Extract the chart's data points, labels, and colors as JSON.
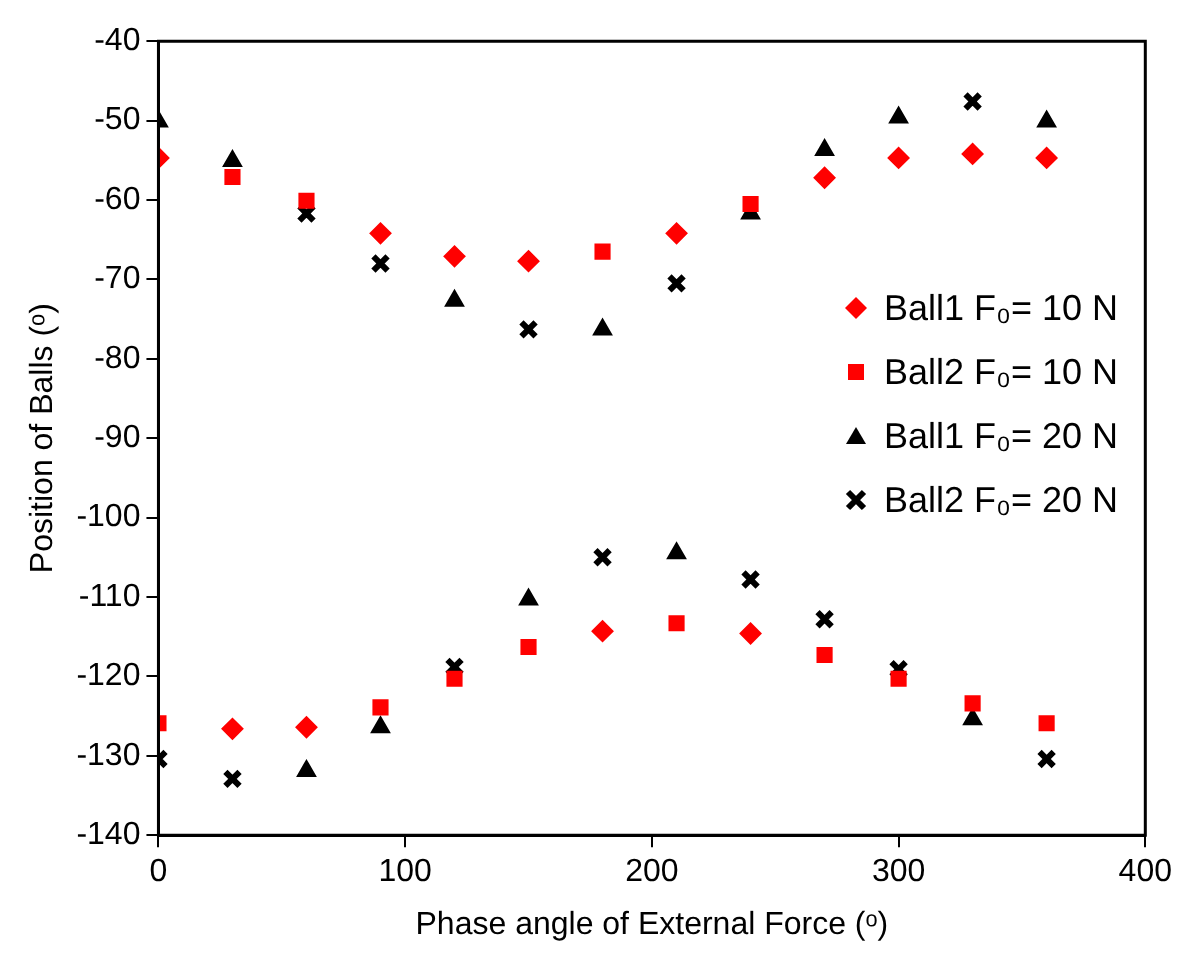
{
  "chart_data": {
    "type": "scatter",
    "xlabel": "Phase angle of External Force (ᵒ)",
    "ylabel": "Position of Balls (ᵒ)",
    "xlim": [
      0,
      400
    ],
    "xticks": [
      0,
      100,
      200,
      300,
      400
    ],
    "ylim": [
      -140,
      -40
    ],
    "yticks": [
      -140,
      -130,
      -120,
      -110,
      -100,
      -90,
      -80,
      -70,
      -60,
      -50,
      -40
    ],
    "grid": false,
    "legend": "right",
    "series": [
      {
        "name": "Ball1 F₀= 10 N",
        "color": "#ff0000",
        "marker": "diamond",
        "x": [
          0,
          90,
          120,
          150,
          210,
          270,
          300,
          330,
          360,
          30,
          60,
          180,
          240
        ],
        "values": [
          -54.7,
          -64.2,
          -67.1,
          -67.7,
          -64.2,
          -57.2,
          -54.7,
          -54.2,
          -54.7,
          -126.6,
          -126.4,
          -114.3,
          -114.6
        ]
      },
      {
        "name": "Ball2 F₀= 10 N",
        "color": "#ff0000",
        "marker": "square",
        "x": [
          30,
          60,
          180,
          240,
          0,
          90,
          120,
          150,
          210,
          270,
          300,
          330,
          360
        ],
        "values": [
          -57.1,
          -60.1,
          -66.5,
          -60.5,
          -125.9,
          -123.9,
          -120.3,
          -116.3,
          -113.3,
          -117.3,
          -120.3,
          -123.4,
          -125.9
        ]
      },
      {
        "name": "Ball1 F₀= 20 N",
        "color": "#000000",
        "marker": "triangle",
        "x": [
          0,
          30,
          120,
          180,
          240,
          270,
          300,
          360,
          60,
          90,
          150,
          210,
          330
        ],
        "values": [
          -50.1,
          -55.1,
          -72.7,
          -76.3,
          -61.7,
          -53.7,
          -49.6,
          -50.1,
          -131.9,
          -126.4,
          -110.3,
          -104.5,
          -125.4
        ]
      },
      {
        "name": "Ball2 F₀= 20 N",
        "color": "#000000",
        "marker": "cross",
        "x": [
          60,
          90,
          150,
          210,
          330,
          0,
          30,
          120,
          180,
          240,
          270,
          300,
          360
        ],
        "values": [
          -61.7,
          -68,
          -76.3,
          -70.5,
          -47.6,
          -130.4,
          -132.9,
          -118.8,
          -105,
          -107.8,
          -112.8,
          -119.1,
          -130.4
        ]
      }
    ]
  }
}
